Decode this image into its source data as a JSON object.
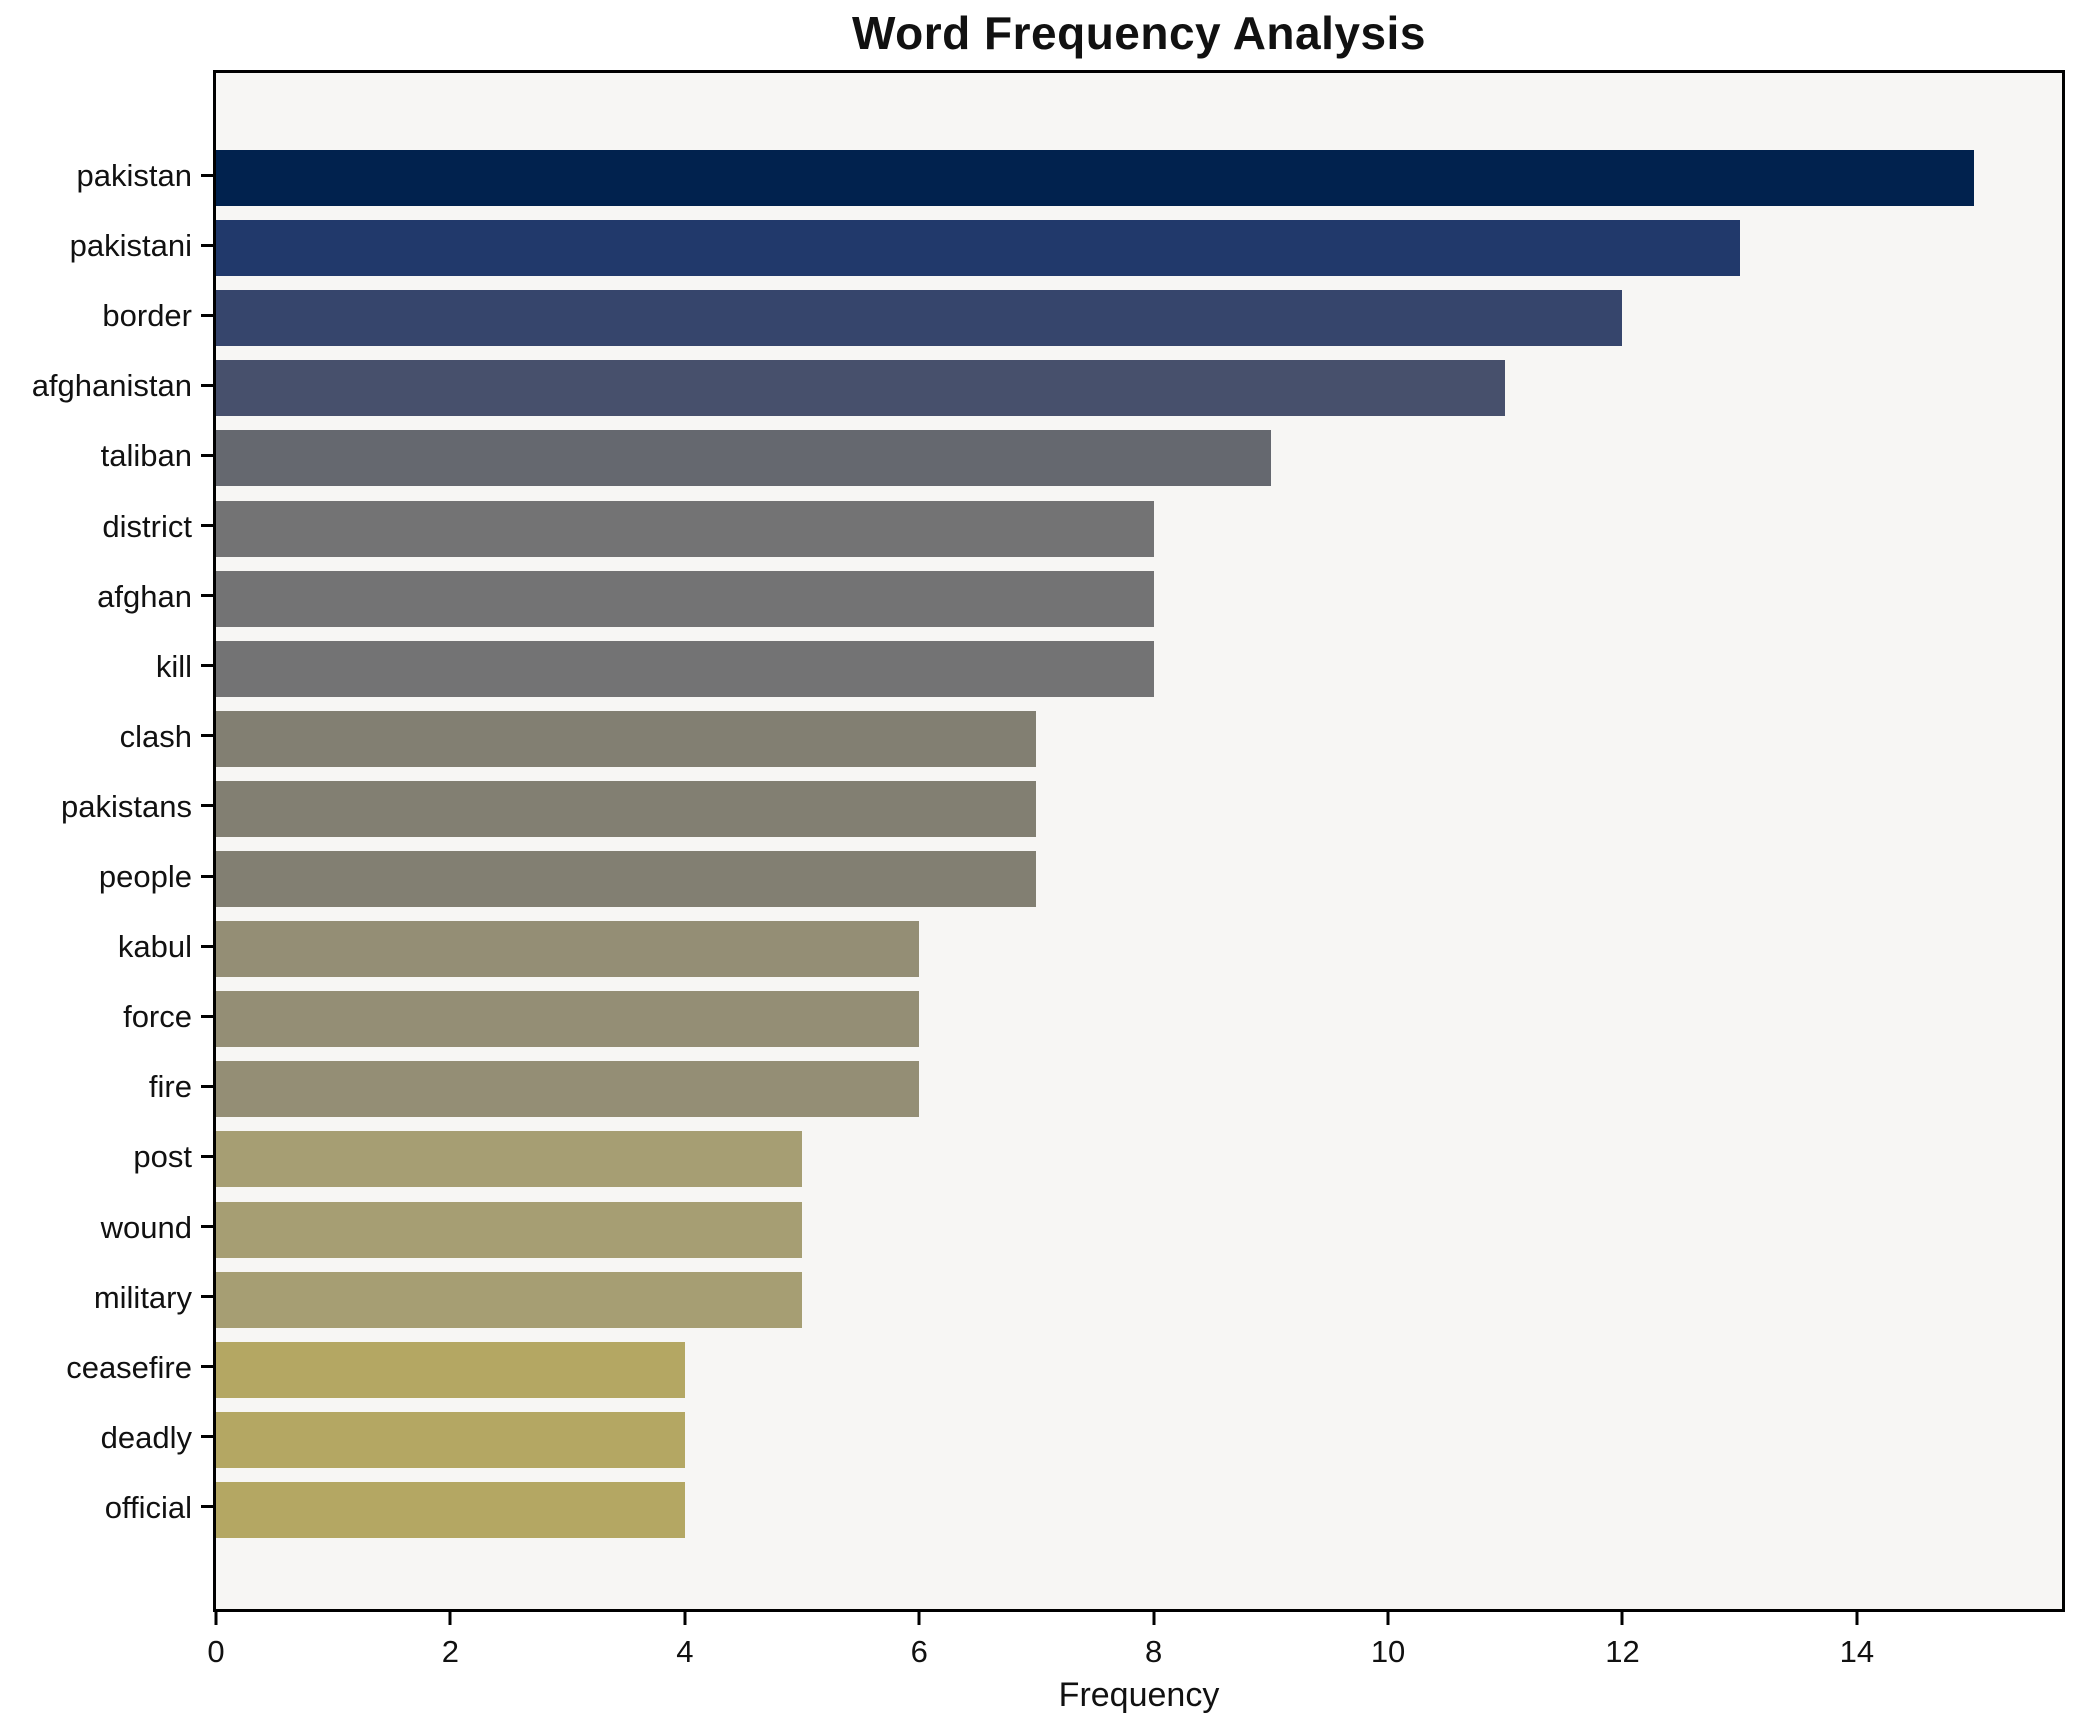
{
  "chart_data": {
    "type": "bar",
    "orientation": "horizontal",
    "title": "Word Frequency Analysis",
    "xlabel": "Frequency",
    "ylabel": "",
    "categories": [
      "pakistan",
      "pakistani",
      "border",
      "afghanistan",
      "taliban",
      "district",
      "afghan",
      "kill",
      "clash",
      "pakistans",
      "people",
      "kabul",
      "force",
      "fire",
      "post",
      "wound",
      "military",
      "ceasefire",
      "deadly",
      "official"
    ],
    "values": [
      15,
      13,
      12,
      11,
      9,
      8,
      8,
      8,
      7,
      7,
      7,
      6,
      6,
      6,
      5,
      5,
      5,
      4,
      4,
      4
    ],
    "bar_colors": [
      "#01224e",
      "#21396b",
      "#36456c",
      "#47506c",
      "#65686f",
      "#737374",
      "#737374",
      "#737374",
      "#827f72",
      "#827f72",
      "#827f72",
      "#948e75",
      "#948e75",
      "#948e75",
      "#a69e73",
      "#a69e73",
      "#a69e73",
      "#b4a763",
      "#b4a763",
      "#b4a763"
    ],
    "xlim": [
      0,
      15.75
    ],
    "x_ticks": [
      0,
      2,
      4,
      6,
      8,
      10,
      12,
      14
    ],
    "grid": false,
    "legend_position": "none",
    "plot_background": "#f7f6f4",
    "figure_background": "#ffffff",
    "axis_color": "#000000"
  }
}
